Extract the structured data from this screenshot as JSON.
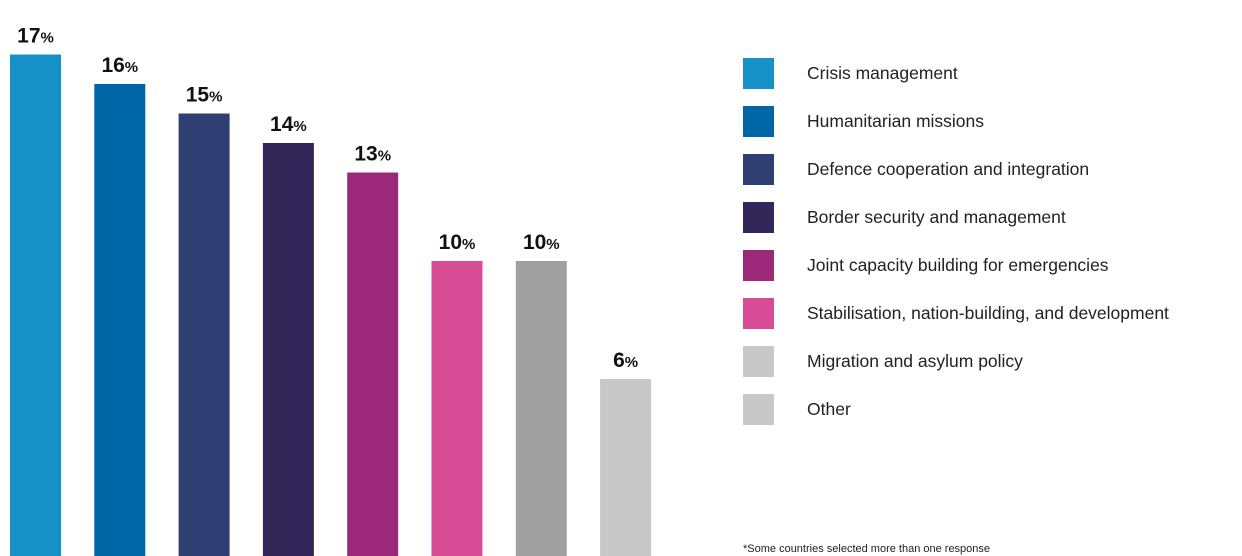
{
  "chart_data": {
    "type": "bar",
    "categories": [
      "Crisis management",
      "Humanitarian missions",
      "Defence cooperation and integration",
      "Border security and management",
      "Joint capacity building for emergencies",
      "Stabilisation, nation-building, and development",
      "Migration and asylum policy",
      "Other"
    ],
    "values": [
      17,
      16,
      15,
      14,
      13,
      10,
      10,
      6
    ],
    "value_suffix": "%",
    "colors": [
      "#1591c8",
      "#0067a6",
      "#2f3f74",
      "#332658",
      "#9b2878",
      "#d84c96",
      "#a0a0a0",
      "#c8c8c8"
    ],
    "legend_colors": [
      "#1591c8",
      "#0067a6",
      "#2f3f74",
      "#332658",
      "#9b2878",
      "#d84c96",
      "#c8c8c8",
      "#c8c8c8"
    ],
    "ylim": [
      0,
      17
    ],
    "grid": false,
    "legend_position": "right",
    "title": "",
    "xlabel": "",
    "ylabel": ""
  },
  "footnote": "*Some countries selected more than one response"
}
